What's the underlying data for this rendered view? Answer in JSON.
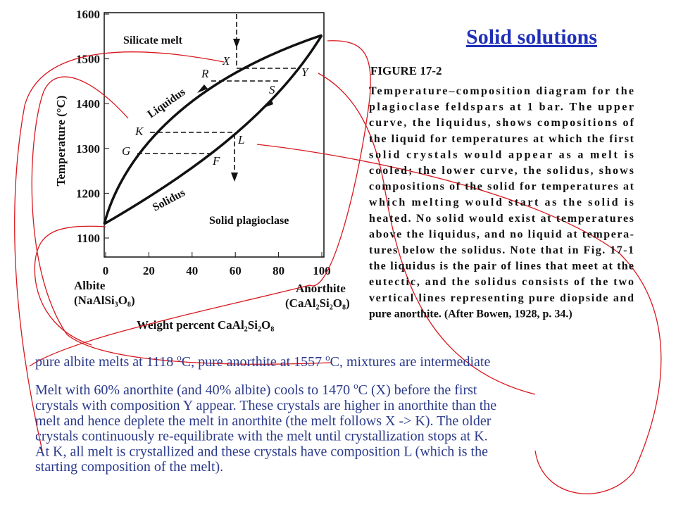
{
  "title": "Solid solutions",
  "diagram": {
    "y_axis_label": "Temperature (°C)",
    "y_ticks": [
      "1600",
      "1500",
      "1400",
      "1300",
      "1200",
      "1100"
    ],
    "x_ticks": [
      "0",
      "20",
      "40",
      "60",
      "80",
      "100"
    ],
    "left_end": [
      "Albite",
      "(NaAlSi₃O₈)"
    ],
    "right_end": [
      "Anorthite",
      "(CaAl₂Si₂O₈)"
    ],
    "x_axis_label": "Weight percent CaAl₂Si₂O₈",
    "regions": {
      "melt": "Silicate melt",
      "solid": "Solid plagioclase",
      "liquidus": "Liquidus",
      "solidus": "Solidus"
    },
    "points": {
      "X": "X",
      "R": "R",
      "Y": "Y",
      "S": "S",
      "K": "K",
      "L": "L",
      "G": "G",
      "F": "F"
    }
  },
  "caption": {
    "heading": "FIGURE 17-2",
    "lines": [
      "Temperature–composition diagram for the",
      "plagioclase feldspars at 1 bar. The upper",
      "curve, the liquidus, shows compositions of",
      "the liquid for temperatures at which the first",
      "solid crystals would appear as a melt is",
      "cooled; the lower curve, the solidus, shows",
      "compositions of the solid for temperatures at",
      "which melting would start as the solid is",
      "heated. No solid would exist at temperatures",
      "above the liquidus, and no liquid at tempera-",
      "tures below the solidus. Note that in Fig. 17-1",
      "the liquidus is the pair of lines that meet at the",
      "eutectic, and the solidus consists of the two",
      "vertical lines representing pure diopside and",
      "pure anorthite. (After Bowen, 1928, p. 34.)"
    ]
  },
  "paragraph1": [
    "pure albite melts at 1118 ",
    "o",
    "C, pure anorthite at 1557 ",
    "o",
    "C, mixtures are intermediate"
  ],
  "paragraph2": {
    "first_line": [
      "Melt with 60% anorthite (and 40% albite) cools to 1470 ",
      "o",
      "C (X) before the first"
    ],
    "lines": [
      "crystals with composition Y appear. These crystals are higher in anorthite than the",
      "melt and hence deplete the melt in anorthite (the melt follows X -> K). The older",
      "crystals continuously re-equilibrate with the melt until crystallization stops at K.",
      "At K, all melt is crystallized and these crystals have composition L (which is the",
      "starting composition of the melt)."
    ]
  }
}
